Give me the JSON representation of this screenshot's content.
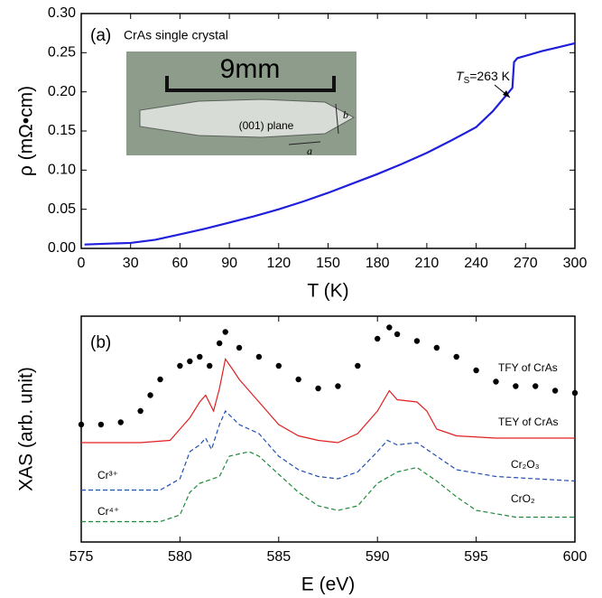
{
  "chart_data": [
    {
      "type": "line",
      "panel_label": "(a)",
      "sample_label": "CrAs single crystal",
      "transition_label": [
        "T",
        "S",
        "=263 K"
      ],
      "inset": {
        "scale": "9mm",
        "plane": "(001) plane",
        "axis_a": "a",
        "axis_b": "b"
      },
      "x_label": "T (K)",
      "y_label": "ρ (mΩ•cm)",
      "xlim": [
        0,
        300
      ],
      "xticks": [
        0,
        30,
        60,
        90,
        120,
        150,
        180,
        210,
        240,
        270,
        300
      ],
      "ylim": [
        0,
        0.3
      ],
      "yticks": [
        {
          "value": 0,
          "label": "0.00"
        },
        {
          "value": 0.05,
          "label": "0.05"
        },
        {
          "value": 0.1,
          "label": "0.10"
        },
        {
          "value": 0.15,
          "label": "0.15"
        },
        {
          "value": 0.2,
          "label": "0.20"
        },
        {
          "value": 0.25,
          "label": "0.25"
        },
        {
          "value": 0.3,
          "label": "0.30"
        }
      ],
      "series": [
        {
          "color": "#1f1fdc",
          "x": [
            2,
            15,
            30,
            45,
            60,
            75,
            90,
            105,
            120,
            135,
            150,
            165,
            180,
            195,
            210,
            225,
            240,
            250,
            258,
            262,
            263,
            265,
            270,
            280,
            290,
            300
          ],
          "values": [
            0.005,
            0.006,
            0.007,
            0.011,
            0.018,
            0.025,
            0.033,
            0.041,
            0.05,
            0.06,
            0.071,
            0.083,
            0.095,
            0.108,
            0.122,
            0.138,
            0.155,
            0.175,
            0.195,
            0.205,
            0.238,
            0.243,
            0.246,
            0.252,
            0.257,
            0.262
          ]
        }
      ]
    },
    {
      "type": "line",
      "panel_label": "(b)",
      "x_label": "E (eV)",
      "y_label": "XAS (arb. unit)",
      "xlim": [
        575,
        600
      ],
      "xticks": [
        575,
        580,
        585,
        590,
        595,
        600
      ],
      "ylim": [
        0,
        10
      ],
      "state_labels": [
        "Cr³⁺",
        "Cr⁴⁺"
      ],
      "series": [
        {
          "name": "TFY of CrAs",
          "color": "#000000",
          "style": "dots",
          "x": [
            575,
            576,
            577,
            578,
            578.5,
            579,
            580,
            580.5,
            581,
            581.5,
            582,
            582.3,
            583,
            584,
            585,
            586,
            587,
            588,
            589,
            590,
            590.6,
            591,
            592,
            593,
            594,
            595,
            596,
            597,
            598,
            599,
            600
          ],
          "values": [
            5.2,
            5.2,
            5.3,
            5.8,
            6.5,
            7.2,
            7.8,
            8.0,
            8.2,
            7.8,
            8.8,
            9.3,
            8.6,
            8.2,
            7.8,
            7.2,
            6.8,
            6.9,
            7.8,
            9.0,
            9.5,
            9.2,
            8.9,
            8.6,
            8.2,
            7.6,
            7.1,
            6.9,
            6.9,
            6.7,
            6.6
          ]
        },
        {
          "name": "TEY of CrAs",
          "color": "#e02020",
          "style": "solid",
          "x": [
            575,
            578,
            579.5,
            580,
            580.5,
            581,
            581.3,
            581.7,
            582,
            582.3,
            582.7,
            583,
            584,
            585,
            586,
            587,
            588,
            589,
            590,
            590.6,
            591,
            592,
            592.5,
            593,
            594,
            596,
            598,
            600
          ],
          "values": [
            4.4,
            4.4,
            4.5,
            5.0,
            5.5,
            6.2,
            6.5,
            5.8,
            6.8,
            8.1,
            7.6,
            7.2,
            6.2,
            5.2,
            4.7,
            4.5,
            4.4,
            4.8,
            5.8,
            6.7,
            6.3,
            6.2,
            5.8,
            5.0,
            4.7,
            4.6,
            4.6,
            4.6
          ]
        },
        {
          "name": "Cr₂O₃",
          "color": "#1f4fb0",
          "style": "dashed",
          "x": [
            575,
            579,
            580,
            580.5,
            581,
            581.3,
            581.6,
            582,
            582.3,
            583,
            584,
            585,
            586,
            587,
            588,
            589,
            590,
            590.5,
            591,
            592,
            593,
            594,
            596,
            598,
            600
          ],
          "values": [
            2.3,
            2.3,
            2.8,
            4.0,
            4.3,
            4.6,
            4.1,
            5.2,
            5.8,
            5.2,
            4.8,
            3.8,
            3.2,
            2.9,
            2.8,
            3.1,
            4.0,
            4.5,
            4.3,
            4.4,
            3.8,
            3.2,
            2.9,
            2.8,
            2.7
          ]
        },
        {
          "name": "CrO₂",
          "color": "#1f8a3a",
          "style": "dashed",
          "x": [
            575,
            579,
            580,
            580.5,
            581,
            582,
            582.5,
            583,
            583.5,
            584,
            585,
            586,
            587,
            588,
            589,
            590,
            591,
            592,
            593,
            594,
            595,
            597,
            600
          ],
          "values": [
            0.9,
            0.9,
            1.2,
            2.2,
            2.6,
            2.9,
            3.8,
            3.9,
            4.0,
            3.8,
            3.0,
            2.2,
            1.6,
            1.4,
            1.6,
            2.6,
            3.1,
            3.3,
            2.7,
            2.0,
            1.4,
            1.1,
            1.1
          ]
        }
      ]
    }
  ]
}
